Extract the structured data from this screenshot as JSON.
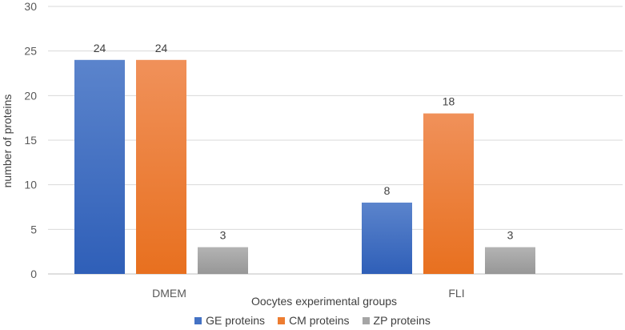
{
  "chart_data": {
    "type": "bar",
    "categories": [
      "DMEM",
      "FLI"
    ],
    "series": [
      {
        "name": "GE proteins",
        "values": [
          24,
          8
        ],
        "color": "#4472C4"
      },
      {
        "name": "CM proteins",
        "values": [
          24,
          18
        ],
        "color": "#ED7D31"
      },
      {
        "name": "ZP proteins",
        "values": [
          3,
          3
        ],
        "color": "#A5A5A5"
      }
    ],
    "title": "",
    "xlabel": "Oocytes experimental groups",
    "ylabel": "number of proteins",
    "ylim": [
      0,
      30
    ],
    "yticks": [
      "0",
      "5",
      "10",
      "15",
      "20",
      "25",
      "30"
    ],
    "grid": true,
    "legend_position": "bottom"
  }
}
